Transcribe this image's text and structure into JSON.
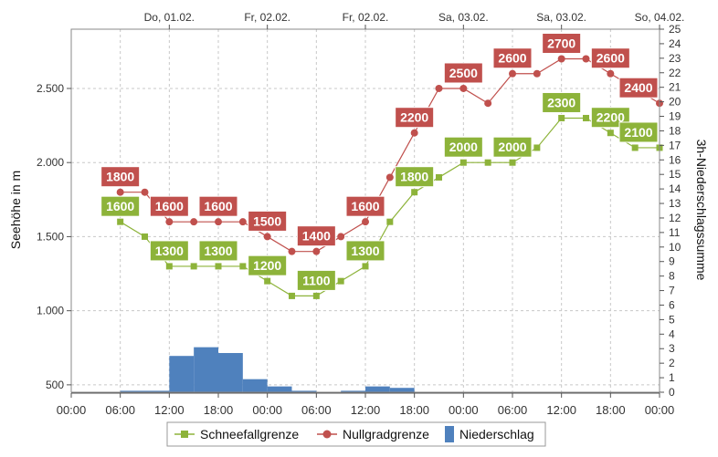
{
  "chart_data": {
    "type": "line",
    "grid": true,
    "legend_position": "bottom",
    "y_left_label": "Seehöhe in m",
    "y_right_label": "3h-Niederschlagssumme",
    "y_left_ticks": [
      "500",
      "1.000",
      "1.500",
      "2.000",
      "2.500"
    ],
    "y_right_ticks": [
      "0",
      "1",
      "2",
      "3",
      "4",
      "5",
      "6",
      "7",
      "8",
      "9",
      "10",
      "11",
      "12",
      "13",
      "14",
      "15",
      "16",
      "17",
      "18",
      "19",
      "20",
      "21",
      "22",
      "23",
      "24",
      "25"
    ],
    "y_left_range": [
      450,
      2900
    ],
    "y_right_range": [
      0,
      25
    ],
    "top_ticks": [
      "Do, 01.02.",
      "Fr, 02.02.",
      "Fr, 02.02.",
      "Sa, 03.02.",
      "Sa, 03.02.",
      "So, 04.02."
    ],
    "bottom_ticks": [
      "00:00",
      "06:00",
      "12:00",
      "18:00",
      "00:00",
      "06:00",
      "12:00",
      "18:00",
      "00:00",
      "06:00",
      "12:00",
      "18:00",
      "00:00"
    ],
    "x_range_hours": [
      0,
      72
    ],
    "series": [
      {
        "name": "Schneefallgrenze",
        "color": "#8db33a",
        "marker": "square",
        "x_hours": [
          6,
          9,
          12,
          15,
          18,
          21,
          24,
          27,
          30,
          33,
          36,
          39,
          42,
          45,
          48,
          51,
          54,
          57,
          60,
          63,
          66,
          69,
          72
        ],
        "values": [
          1600,
          1500,
          1300,
          1300,
          1300,
          1300,
          1200,
          1100,
          1100,
          1200,
          1300,
          1600,
          1800,
          1900,
          2000,
          2000,
          2000,
          2100,
          2300,
          2300,
          2200,
          2100,
          2100
        ],
        "labels": [
          {
            "x": 6,
            "text": "1600"
          },
          {
            "x": 12,
            "text": "1300"
          },
          {
            "x": 18,
            "text": "1300"
          },
          {
            "x": 24,
            "text": "1200"
          },
          {
            "x": 30,
            "text": "1100"
          },
          {
            "x": 36,
            "text": "1300"
          },
          {
            "x": 42,
            "text": "1800"
          },
          {
            "x": 48,
            "text": "2000"
          },
          {
            "x": 54,
            "text": "2000"
          },
          {
            "x": 60,
            "text": "2300"
          },
          {
            "x": 66,
            "text": "2200"
          },
          {
            "x": 72,
            "text": "2100"
          }
        ]
      },
      {
        "name": "Nullgradgrenze",
        "color": "#c0504d",
        "marker": "circle",
        "x_hours": [
          6,
          9,
          12,
          15,
          18,
          21,
          24,
          27,
          30,
          33,
          36,
          39,
          42,
          45,
          48,
          51,
          54,
          57,
          60,
          63,
          66,
          69,
          72
        ],
        "values": [
          1800,
          1800,
          1600,
          1600,
          1600,
          1600,
          1500,
          1400,
          1400,
          1500,
          1600,
          1900,
          2200,
          2500,
          2500,
          2400,
          2600,
          2600,
          2700,
          2700,
          2600,
          2500,
          2400
        ],
        "labels": [
          {
            "x": 6,
            "text": "1800"
          },
          {
            "x": 12,
            "text": "1600"
          },
          {
            "x": 18,
            "text": "1600"
          },
          {
            "x": 24,
            "text": "1500"
          },
          {
            "x": 30,
            "text": "1400"
          },
          {
            "x": 36,
            "text": "1600"
          },
          {
            "x": 42,
            "text": "2200"
          },
          {
            "x": 48,
            "text": "2500"
          },
          {
            "x": 54,
            "text": "2600"
          },
          {
            "x": 60,
            "text": "2700"
          },
          {
            "x": 66,
            "text": "2600"
          },
          {
            "x": 72,
            "text": "2400"
          }
        ]
      },
      {
        "name": "Niederschlag",
        "type": "bar",
        "axis": "right",
        "color": "#4f81bd",
        "x_start_hours": [
          6,
          9,
          12,
          15,
          18,
          21,
          24,
          27,
          30,
          33,
          36,
          39,
          42,
          45,
          48,
          51,
          54,
          57,
          60,
          63,
          66,
          69
        ],
        "values": [
          0.1,
          0.1,
          2.5,
          3.1,
          2.7,
          0.9,
          0.4,
          0.1,
          0,
          0.1,
          0.4,
          0.3,
          0,
          0,
          0,
          0,
          0,
          0,
          0,
          0,
          0,
          0
        ]
      }
    ]
  }
}
